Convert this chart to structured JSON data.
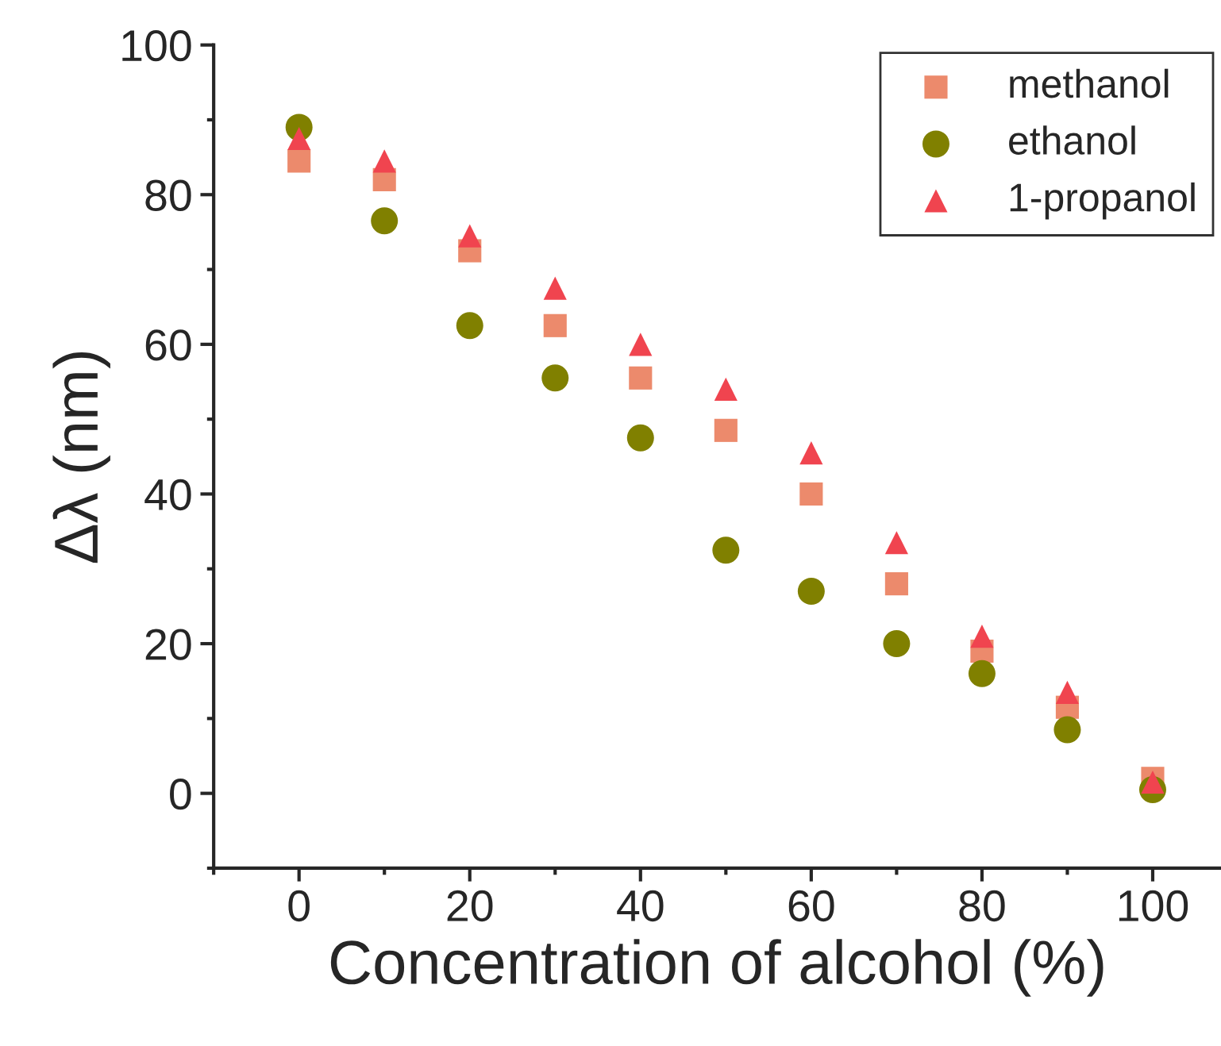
{
  "chart_data": {
    "type": "scatter",
    "xlabel": "Concentration of alcohol (%)",
    "ylabel": "Δλ (nm)",
    "x": [
      0,
      10,
      20,
      30,
      40,
      50,
      60,
      70,
      80,
      90,
      100
    ],
    "series": [
      {
        "name": "methanol",
        "color": "#ec8a6c",
        "marker": "square",
        "values": [
          84.5,
          82,
          72.5,
          62.5,
          55.5,
          48.5,
          40,
          28,
          19,
          11.5,
          2
        ]
      },
      {
        "name": "ethanol",
        "color": "#808000",
        "marker": "circle",
        "values": [
          89,
          76.5,
          62.5,
          55.5,
          47.5,
          32.5,
          27,
          20,
          16,
          8.5,
          0.5
        ]
      },
      {
        "name": "1-propanol",
        "color": "#f0444f",
        "marker": "triangle",
        "values": [
          87.5,
          84.5,
          74.5,
          67.5,
          60,
          54,
          45.5,
          33.5,
          21,
          13.5,
          1.5
        ]
      }
    ],
    "xlim": [
      -10,
      108
    ],
    "ylim": [
      -10,
      100
    ],
    "xticks": [
      0,
      20,
      40,
      60,
      80,
      100
    ],
    "yticks": [
      0,
      20,
      40,
      60,
      80,
      100
    ],
    "grid": false,
    "legend": "top right"
  }
}
